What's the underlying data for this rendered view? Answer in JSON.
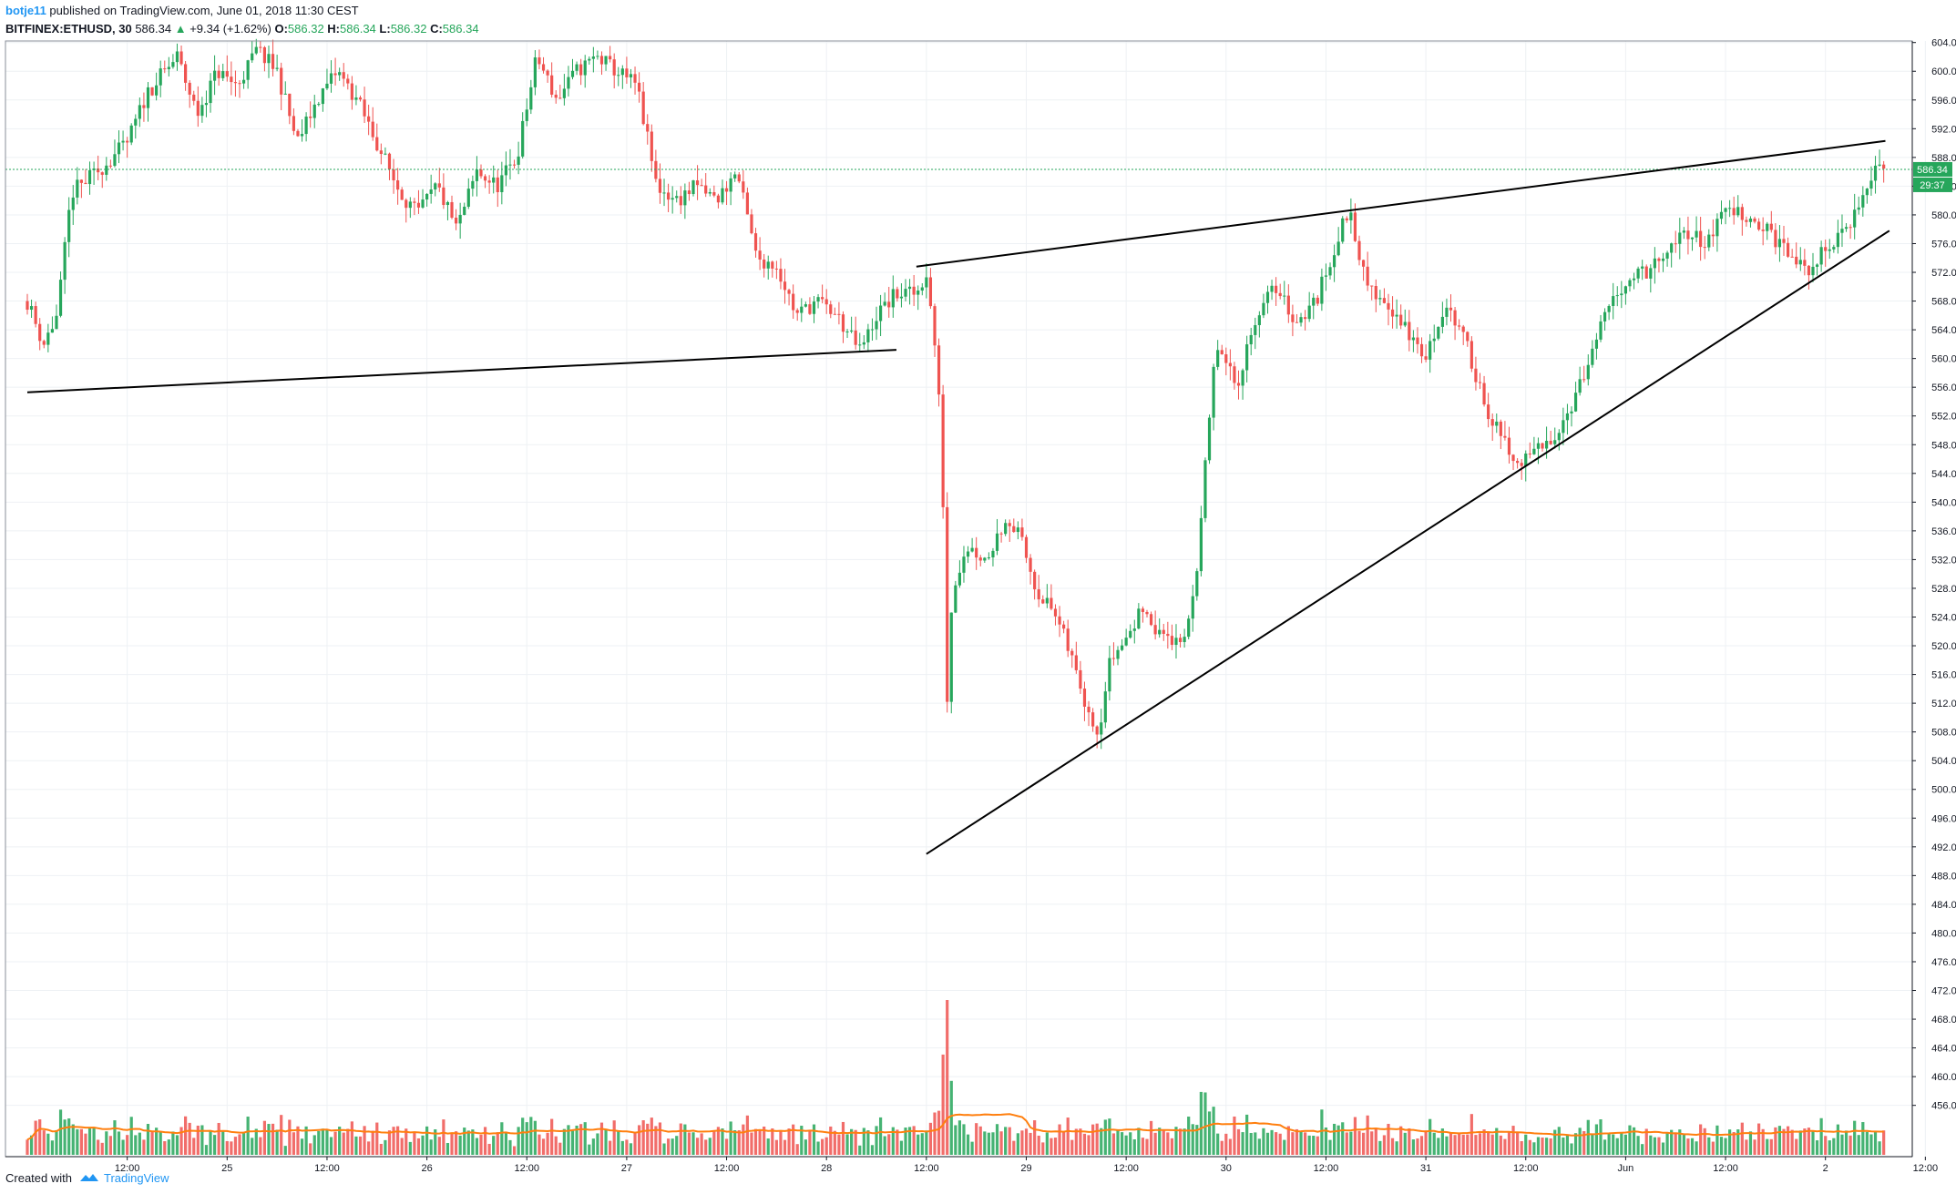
{
  "header": {
    "author": "botje11",
    "published": "published on TradingView.com, June 01, 2018 11:30 CEST",
    "symbol": "BITFINEX:ETHUSD, 30",
    "last": "586.34",
    "change": "+9.34 (+1.62%)",
    "o_label": "O:",
    "o_value": "586.32",
    "h_label": "H:",
    "h_value": "586.34",
    "l_label": "L:",
    "l_value": "586.32",
    "c_label": "C:",
    "c_value": "586.34"
  },
  "footer": {
    "created_with": "Created with",
    "brand": "TradingView"
  },
  "price_tag": {
    "price": "586.34",
    "countdown": "29:37"
  },
  "colors": {
    "up": "#26a65b",
    "down": "#ef5350",
    "ma": "#ff7f0e",
    "grid": "#eef1f4",
    "price_line": "#26a65b",
    "trendline": "#000000"
  },
  "chart_data": {
    "type": "candlestick",
    "symbol": "BITFINEX:ETHUSD",
    "interval": "30",
    "ylim": [
      450,
      605
    ],
    "y_ticks": [
      "604.00",
      "600.00",
      "596.00",
      "592.00",
      "588.00",
      "584.00",
      "580.00",
      "576.00",
      "572.00",
      "568.00",
      "564.00",
      "560.00",
      "556.00",
      "552.00",
      "548.00",
      "544.00",
      "540.00",
      "536.00",
      "532.00",
      "528.00",
      "524.00",
      "520.00",
      "516.00",
      "512.00",
      "508.00",
      "504.00",
      "500.00",
      "496.00",
      "492.00",
      "488.00",
      "484.00",
      "480.00",
      "476.00",
      "472.00",
      "468.00",
      "464.00",
      "460.00",
      "456.00"
    ],
    "x_ticks": [
      {
        "label": "12:00",
        "t": 0.5
      },
      {
        "label": "25",
        "t": 1
      },
      {
        "label": "12:00",
        "t": 1.5
      },
      {
        "label": "26",
        "t": 2
      },
      {
        "label": "12:00",
        "t": 2.5
      },
      {
        "label": "27",
        "t": 3
      },
      {
        "label": "12:00",
        "t": 3.5
      },
      {
        "label": "28",
        "t": 4
      },
      {
        "label": "12:00",
        "t": 4.5
      },
      {
        "label": "29",
        "t": 5
      },
      {
        "label": "12:00",
        "t": 5.5
      },
      {
        "label": "30",
        "t": 6
      },
      {
        "label": "12:00",
        "t": 6.5
      },
      {
        "label": "31",
        "t": 7
      },
      {
        "label": "12:00",
        "t": 7.5
      },
      {
        "label": "Jun",
        "t": 8
      },
      {
        "label": "12:00",
        "t": 8.5
      },
      {
        "label": "2",
        "t": 9
      },
      {
        "label": "12:00",
        "t": 9.5
      }
    ],
    "current_price": 586.34,
    "close_path": [
      [
        0.0,
        568
      ],
      [
        0.08,
        562
      ],
      [
        0.15,
        566
      ],
      [
        0.22,
        583
      ],
      [
        0.35,
        586
      ],
      [
        0.5,
        590
      ],
      [
        0.6,
        597
      ],
      [
        0.75,
        602
      ],
      [
        0.85,
        594
      ],
      [
        0.95,
        600
      ],
      [
        1.05,
        598
      ],
      [
        1.15,
        603
      ],
      [
        1.25,
        600
      ],
      [
        1.35,
        590
      ],
      [
        1.45,
        596
      ],
      [
        1.55,
        600
      ],
      [
        1.65,
        596
      ],
      [
        1.75,
        590
      ],
      [
        1.85,
        584
      ],
      [
        1.95,
        580
      ],
      [
        2.05,
        584
      ],
      [
        2.15,
        578
      ],
      [
        2.25,
        586
      ],
      [
        2.35,
        584
      ],
      [
        2.45,
        588
      ],
      [
        2.55,
        602
      ],
      [
        2.65,
        596
      ],
      [
        2.75,
        600
      ],
      [
        2.85,
        602
      ],
      [
        2.95,
        600
      ],
      [
        3.05,
        598
      ],
      [
        3.15,
        584
      ],
      [
        3.25,
        582
      ],
      [
        3.35,
        584
      ],
      [
        3.45,
        582
      ],
      [
        3.55,
        586
      ],
      [
        3.65,
        574
      ],
      [
        3.75,
        573
      ],
      [
        3.85,
        566
      ],
      [
        3.95,
        568
      ],
      [
        4.05,
        566
      ],
      [
        4.12,
        563
      ],
      [
        4.17,
        561
      ],
      [
        4.25,
        566
      ],
      [
        4.35,
        569
      ],
      [
        4.45,
        569
      ],
      [
        4.5,
        572
      ],
      [
        4.55,
        560
      ],
      [
        4.58,
        546
      ],
      [
        4.6,
        510
      ],
      [
        4.63,
        528
      ],
      [
        4.7,
        534
      ],
      [
        4.8,
        532
      ],
      [
        4.9,
        538
      ],
      [
        4.97,
        535
      ],
      [
        5.05,
        528
      ],
      [
        5.15,
        524
      ],
      [
        5.23,
        518
      ],
      [
        5.3,
        512
      ],
      [
        5.36,
        508
      ],
      [
        5.42,
        518
      ],
      [
        5.5,
        521
      ],
      [
        5.6,
        526
      ],
      [
        5.65,
        521
      ],
      [
        5.7,
        522
      ],
      [
        5.78,
        519
      ],
      [
        5.85,
        530
      ],
      [
        5.9,
        546
      ],
      [
        5.95,
        562
      ],
      [
        6.05,
        556
      ],
      [
        6.15,
        566
      ],
      [
        6.25,
        570
      ],
      [
        6.35,
        565
      ],
      [
        6.45,
        568
      ],
      [
        6.55,
        576
      ],
      [
        6.62,
        581
      ],
      [
        6.7,
        570
      ],
      [
        6.8,
        568
      ],
      [
        6.9,
        564
      ],
      [
        7.0,
        560
      ],
      [
        7.1,
        568
      ],
      [
        7.2,
        562
      ],
      [
        7.32,
        552
      ],
      [
        7.45,
        545
      ],
      [
        7.6,
        548
      ],
      [
        7.7,
        552
      ],
      [
        7.8,
        558
      ],
      [
        7.9,
        566
      ],
      [
        8.0,
        571
      ],
      [
        8.1,
        572
      ],
      [
        8.2,
        574
      ],
      [
        8.3,
        578
      ],
      [
        8.4,
        576
      ],
      [
        8.5,
        581
      ],
      [
        8.6,
        580
      ],
      [
        8.7,
        578
      ],
      [
        8.8,
        575
      ],
      [
        8.9,
        572
      ],
      [
        9.0,
        575
      ],
      [
        9.1,
        578
      ],
      [
        9.2,
        583
      ],
      [
        9.25,
        587
      ],
      [
        9.31,
        586.34
      ]
    ],
    "volume_ratio_max": 1,
    "trendlines": [
      {
        "name": "support-flat",
        "from": [
          0.0,
          555.3
        ],
        "to": [
          4.35,
          561.2
        ]
      },
      {
        "name": "resistance-upper",
        "from": [
          4.45,
          572.8
        ],
        "to": [
          9.3,
          590.3
        ]
      },
      {
        "name": "support-rising",
        "from": [
          4.5,
          491.0
        ],
        "to": [
          9.32,
          577.8
        ]
      }
    ]
  }
}
